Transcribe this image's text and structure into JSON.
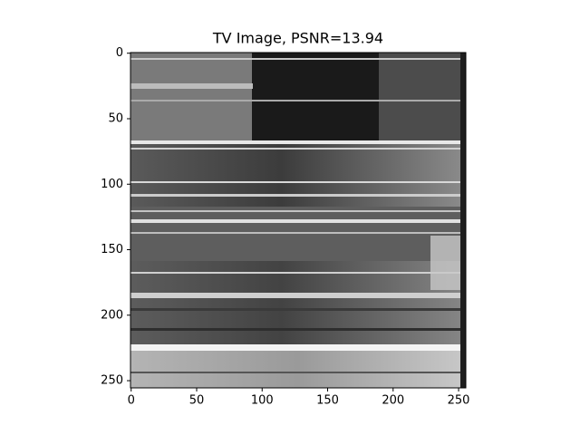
{
  "chart_data": {
    "type": "image",
    "title": "TV Image, PSNR=13.94",
    "xlim": [
      -0.5,
      255.5
    ],
    "xticks": [
      0,
      50,
      100,
      150,
      200,
      250
    ],
    "ylim": [
      255.5,
      -0.5
    ],
    "yticks": [
      0,
      50,
      100,
      150,
      200,
      250
    ],
    "colormap": "gray"
  }
}
